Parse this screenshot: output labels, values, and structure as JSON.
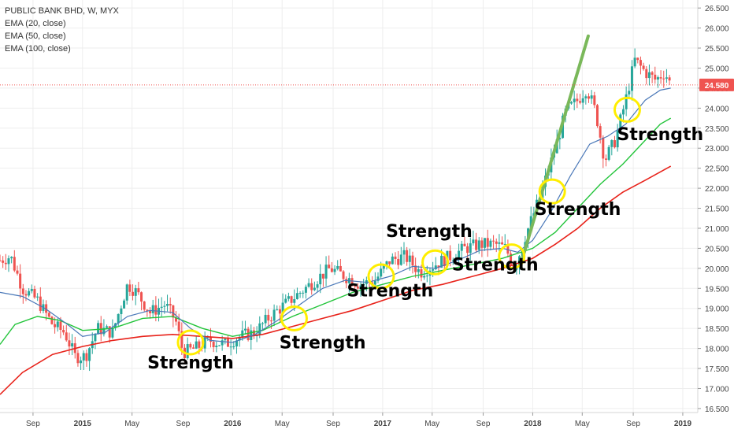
{
  "legend": {
    "title": "PUBLIC BANK BHD, W, MYX",
    "ema20": "EMA (20, close)",
    "ema50": "EMA (50, close)",
    "ema100": "EMA (100, close)"
  },
  "colors": {
    "up": "#26a69a",
    "down": "#ef5350",
    "ema20": "#4a78b8",
    "ema50": "#22c43a",
    "ema100": "#e8221a",
    "trend": "#7ab85a",
    "highlight": "#ffee00",
    "price_tag": "#ef5350",
    "grid": "#eeeeee"
  },
  "chart_data": {
    "type": "candlestick",
    "y_ticks": [
      "16.500",
      "17.000",
      "17.500",
      "18.000",
      "18.500",
      "19.000",
      "19.500",
      "20.000",
      "20.500",
      "21.000",
      "21.500",
      "22.000",
      "22.500",
      "23.000",
      "23.500",
      "24.000",
      "24.500",
      "25.000",
      "25.500",
      "26.000",
      "26.500"
    ],
    "ylim": [
      16.4,
      26.7
    ],
    "x_ticks": [
      {
        "label": "Sep",
        "t": 2014.67
      },
      {
        "label": "2015",
        "t": 2015.0
      },
      {
        "label": "May",
        "t": 2015.33
      },
      {
        "label": "Sep",
        "t": 2015.67
      },
      {
        "label": "2016",
        "t": 2016.0
      },
      {
        "label": "May",
        "t": 2016.33
      },
      {
        "label": "Sep",
        "t": 2016.67
      },
      {
        "label": "2017",
        "t": 2017.0
      },
      {
        "label": "May",
        "t": 2017.33
      },
      {
        "label": "Sep",
        "t": 2017.67
      },
      {
        "label": "2018",
        "t": 2018.0
      },
      {
        "label": "May",
        "t": 2018.33
      },
      {
        "label": "Sep",
        "t": 2018.67
      },
      {
        "label": "2019",
        "t": 2019.0
      }
    ],
    "xlim": [
      2014.45,
      2019.1
    ],
    "last_price": 24.58,
    "last_price_label": "24.580",
    "price_path": [
      [
        2014.45,
        20.2
      ],
      [
        2014.52,
        20.3
      ],
      [
        2014.6,
        19.5
      ],
      [
        2014.7,
        19.2
      ],
      [
        2014.8,
        18.6
      ],
      [
        2014.88,
        18.4
      ],
      [
        2014.95,
        17.8
      ],
      [
        2015.02,
        17.8
      ],
      [
        2015.1,
        18.5
      ],
      [
        2015.2,
        18.4
      ],
      [
        2015.3,
        19.6
      ],
      [
        2015.36,
        19.4
      ],
      [
        2015.45,
        18.9
      ],
      [
        2015.55,
        19.1
      ],
      [
        2015.62,
        18.7
      ],
      [
        2015.67,
        17.9
      ],
      [
        2015.75,
        18.0
      ],
      [
        2015.85,
        18.2
      ],
      [
        2015.95,
        18.1
      ],
      [
        2016.05,
        18.3
      ],
      [
        2016.15,
        18.4
      ],
      [
        2016.25,
        18.8
      ],
      [
        2016.35,
        19.1
      ],
      [
        2016.45,
        19.4
      ],
      [
        2016.55,
        19.7
      ],
      [
        2016.65,
        20.0
      ],
      [
        2016.75,
        19.8
      ],
      [
        2016.85,
        19.6
      ],
      [
        2016.95,
        19.7
      ],
      [
        2017.05,
        20.2
      ],
      [
        2017.15,
        20.3
      ],
      [
        2017.25,
        19.9
      ],
      [
        2017.35,
        20.1
      ],
      [
        2017.45,
        20.3
      ],
      [
        2017.55,
        20.5
      ],
      [
        2017.65,
        20.6
      ],
      [
        2017.75,
        20.6
      ],
      [
        2017.82,
        20.5
      ],
      [
        2017.88,
        20.0
      ],
      [
        2017.95,
        20.8
      ],
      [
        2018.05,
        21.8
      ],
      [
        2018.15,
        23.0
      ],
      [
        2018.22,
        23.9
      ],
      [
        2018.3,
        24.2
      ],
      [
        2018.36,
        24.5
      ],
      [
        2018.42,
        23.9
      ],
      [
        2018.48,
        22.7
      ],
      [
        2018.55,
        23.2
      ],
      [
        2018.62,
        24.2
      ],
      [
        2018.68,
        25.2
      ],
      [
        2018.75,
        24.9
      ],
      [
        2018.82,
        24.7
      ],
      [
        2018.88,
        24.9
      ],
      [
        2018.92,
        24.58
      ]
    ],
    "ema20": [
      [
        2014.45,
        19.4
      ],
      [
        2014.6,
        19.3
      ],
      [
        2014.75,
        19.0
      ],
      [
        2014.9,
        18.6
      ],
      [
        2015.0,
        18.3
      ],
      [
        2015.15,
        18.4
      ],
      [
        2015.3,
        18.8
      ],
      [
        2015.45,
        18.95
      ],
      [
        2015.6,
        18.9
      ],
      [
        2015.72,
        18.5
      ],
      [
        2015.85,
        18.2
      ],
      [
        2016.0,
        18.15
      ],
      [
        2016.15,
        18.35
      ],
      [
        2016.3,
        18.7
      ],
      [
        2016.45,
        19.1
      ],
      [
        2016.6,
        19.5
      ],
      [
        2016.75,
        19.7
      ],
      [
        2016.9,
        19.65
      ],
      [
        2017.05,
        19.8
      ],
      [
        2017.2,
        20.05
      ],
      [
        2017.35,
        20.0
      ],
      [
        2017.5,
        20.2
      ],
      [
        2017.65,
        20.45
      ],
      [
        2017.8,
        20.5
      ],
      [
        2017.9,
        20.4
      ],
      [
        2018.0,
        20.7
      ],
      [
        2018.12,
        21.4
      ],
      [
        2018.25,
        22.3
      ],
      [
        2018.38,
        23.1
      ],
      [
        2018.5,
        23.3
      ],
      [
        2018.62,
        23.6
      ],
      [
        2018.75,
        24.2
      ],
      [
        2018.85,
        24.45
      ],
      [
        2018.92,
        24.5
      ]
    ],
    "ema50": [
      [
        2014.45,
        18.1
      ],
      [
        2014.55,
        18.6
      ],
      [
        2014.7,
        18.8
      ],
      [
        2014.85,
        18.7
      ],
      [
        2015.0,
        18.45
      ],
      [
        2015.2,
        18.5
      ],
      [
        2015.4,
        18.75
      ],
      [
        2015.6,
        18.8
      ],
      [
        2015.8,
        18.5
      ],
      [
        2016.0,
        18.3
      ],
      [
        2016.2,
        18.45
      ],
      [
        2016.4,
        18.8
      ],
      [
        2016.6,
        19.1
      ],
      [
        2016.8,
        19.4
      ],
      [
        2017.0,
        19.6
      ],
      [
        2017.2,
        19.8
      ],
      [
        2017.4,
        19.95
      ],
      [
        2017.6,
        20.1
      ],
      [
        2017.8,
        20.25
      ],
      [
        2018.0,
        20.5
      ],
      [
        2018.15,
        20.9
      ],
      [
        2018.3,
        21.5
      ],
      [
        2018.45,
        22.1
      ],
      [
        2018.6,
        22.6
      ],
      [
        2018.75,
        23.2
      ],
      [
        2018.85,
        23.6
      ],
      [
        2018.92,
        23.75
      ]
    ],
    "ema100": [
      [
        2014.45,
        16.85
      ],
      [
        2014.6,
        17.4
      ],
      [
        2014.8,
        17.85
      ],
      [
        2015.0,
        18.05
      ],
      [
        2015.2,
        18.2
      ],
      [
        2015.4,
        18.3
      ],
      [
        2015.6,
        18.35
      ],
      [
        2015.8,
        18.3
      ],
      [
        2016.0,
        18.25
      ],
      [
        2016.2,
        18.35
      ],
      [
        2016.4,
        18.55
      ],
      [
        2016.6,
        18.75
      ],
      [
        2016.8,
        18.95
      ],
      [
        2017.0,
        19.2
      ],
      [
        2017.2,
        19.45
      ],
      [
        2017.4,
        19.6
      ],
      [
        2017.6,
        19.8
      ],
      [
        2017.8,
        20.0
      ],
      [
        2018.0,
        20.25
      ],
      [
        2018.15,
        20.6
      ],
      [
        2018.3,
        21.0
      ],
      [
        2018.45,
        21.5
      ],
      [
        2018.6,
        21.9
      ],
      [
        2018.75,
        22.2
      ],
      [
        2018.92,
        22.55
      ]
    ],
    "trendline": [
      [
        2017.92,
        20.1
      ],
      [
        2018.37,
        25.8
      ]
    ],
    "annotations": [
      {
        "text": "Strength",
        "t": 2015.72,
        "y": 17.5
      },
      {
        "text": "Strength",
        "t": 2016.6,
        "y": 18.0
      },
      {
        "text": "Strength",
        "t": 2017.05,
        "y": 19.3
      },
      {
        "text": "Strength",
        "t": 2017.31,
        "y": 20.78
      },
      {
        "text": "Strength",
        "t": 2017.75,
        "y": 19.95
      },
      {
        "text": "Strength",
        "t": 2018.3,
        "y": 21.33
      },
      {
        "text": "Strength",
        "t": 2018.85,
        "y": 23.2
      }
    ],
    "highlights": [
      {
        "t": 2015.72,
        "y": 18.15
      },
      {
        "t": 2016.41,
        "y": 18.75
      },
      {
        "t": 2016.99,
        "y": 19.8
      },
      {
        "t": 2017.35,
        "y": 20.15
      },
      {
        "t": 2017.86,
        "y": 20.3
      },
      {
        "t": 2018.13,
        "y": 21.92
      },
      {
        "t": 2018.63,
        "y": 23.96
      }
    ]
  }
}
